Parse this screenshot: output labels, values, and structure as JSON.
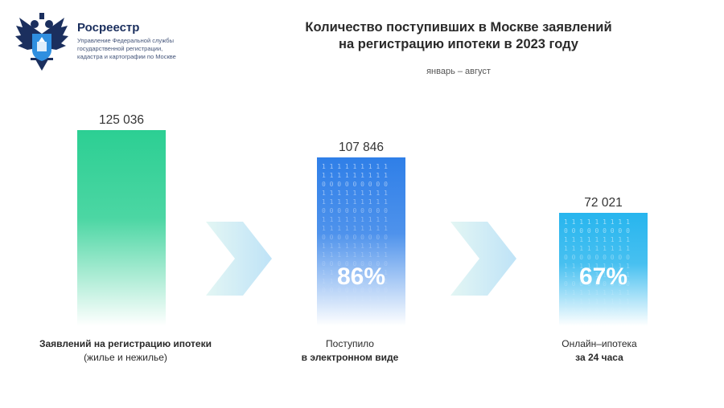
{
  "header": {
    "org_name": "Росреестр",
    "org_desc": [
      "Управление Федеральной службы",
      "государственной регистрации,",
      "кадастра и картографии по Москве"
    ],
    "logo_icon": "double-headed-eagle-emblem"
  },
  "chart_data": {
    "type": "bar",
    "title": "Количество поступивших в Москве заявлений на регистрацию ипотеки в 2023 году",
    "title_lines": [
      "Количество поступивших в Москве заявлений",
      "на регистрацию ипотеки в 2023 году"
    ],
    "subtitle": "январь – август",
    "categories": [
      [
        "Заявлений на регистрацию ипотеки",
        "(жилье и нежилье)"
      ],
      [
        "Поступило",
        "в электронном виде"
      ],
      [
        "Онлайн–ипотека",
        "за 24 часа"
      ]
    ],
    "values": [
      125036,
      107846,
      72021
    ],
    "value_labels": [
      "125 036",
      "107 846",
      "72 021"
    ],
    "percent_labels": [
      "",
      "86%",
      "67%"
    ],
    "colors": [
      "#2ccf93",
      "#2f7fe8",
      "#27b5ee"
    ],
    "arrow_color": "#bfe3f7",
    "ylim": [
      0,
      125036
    ]
  }
}
